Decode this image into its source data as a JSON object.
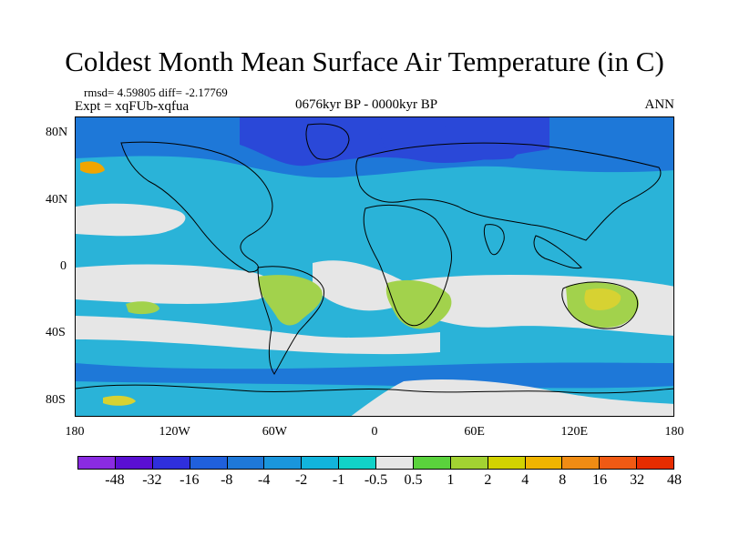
{
  "title": "Coldest Month Mean Surface Air Temperature (in C)",
  "stats": "rmsd= 4.59805 diff= -2.17769",
  "expt": "Expt = xqFUb-xqfua",
  "period": "0676kyr BP - 0000kyr BP",
  "season": "ANN",
  "map": {
    "lat_labels": [
      {
        "label": "80N",
        "lat": 80
      },
      {
        "label": "40N",
        "lat": 40
      },
      {
        "label": "0",
        "lat": 0
      },
      {
        "label": "40S",
        "lat": -40
      },
      {
        "label": "80S",
        "lat": -80
      }
    ],
    "lon_labels": [
      {
        "label": "180",
        "lon": -180
      },
      {
        "label": "120W",
        "lon": -120
      },
      {
        "label": "60W",
        "lon": -60
      },
      {
        "label": "0",
        "lon": 0
      },
      {
        "label": "60E",
        "lon": 60
      },
      {
        "label": "120E",
        "lon": 120
      },
      {
        "label": "180",
        "lon": 180
      }
    ],
    "colors": {
      "background": "#2ab3d8",
      "neutral": "#e6e6e6",
      "land_warm": "#a2d24c",
      "land_warm2": "#d7d232",
      "cold_dark": "#2a48d8",
      "cold_mid": "#1e78d8",
      "cold_light": "#12a5d2",
      "cyan": "#12d2c0",
      "orange": "#f0a500",
      "coast": "#000000"
    }
  },
  "colorbar": {
    "colors": [
      "#8a2be2",
      "#5a0fd2",
      "#2f2fdc",
      "#2060dc",
      "#1e78d8",
      "#1a96dc",
      "#12b4dc",
      "#12d2c8",
      "#e6e6e6",
      "#5ad23c",
      "#a2d232",
      "#d2d200",
      "#f0b400",
      "#f08c14",
      "#f05a14",
      "#e62c00"
    ],
    "labels": [
      "-48",
      "-32",
      "-16",
      "-8",
      "-4",
      "-2",
      "-1",
      "-0.5",
      "0.5",
      "1",
      "2",
      "4",
      "8",
      "16",
      "32",
      "48"
    ]
  }
}
